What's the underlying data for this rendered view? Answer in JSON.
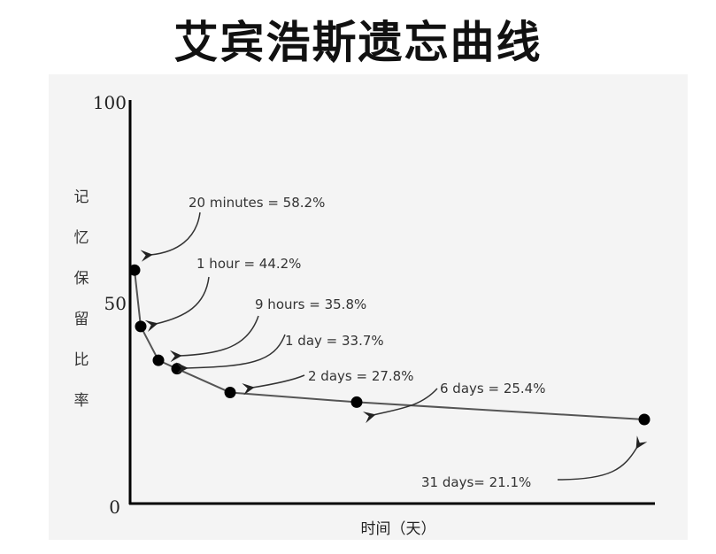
{
  "chart_data": {
    "type": "line",
    "title": "艾宾浩斯遗忘曲线",
    "xlabel": "时间（天）",
    "ylabel": "记忆保留比率",
    "ylim": [
      0,
      100
    ],
    "yticks": [
      "0",
      "50",
      "100"
    ],
    "grid": false,
    "color": "#111111",
    "points": [
      {
        "x_days": 0.0139,
        "y": 58.2,
        "label": "20 minutes = 58.2%"
      },
      {
        "x_days": 0.0417,
        "y": 44.2,
        "label": "1 hour = 44.2%"
      },
      {
        "x_days": 0.375,
        "y": 35.8,
        "label": "9 hours = 35.8%"
      },
      {
        "x_days": 1,
        "y": 33.7,
        "label": "1 day = 33.7%"
      },
      {
        "x_days": 2,
        "y": 27.8,
        "label": "2 days = 27.8%"
      },
      {
        "x_days": 6,
        "y": 25.4,
        "label": "6 days = 25.4%"
      },
      {
        "x_days": 31,
        "y": 21.1,
        "label": "31 days= 21.1%"
      }
    ]
  }
}
